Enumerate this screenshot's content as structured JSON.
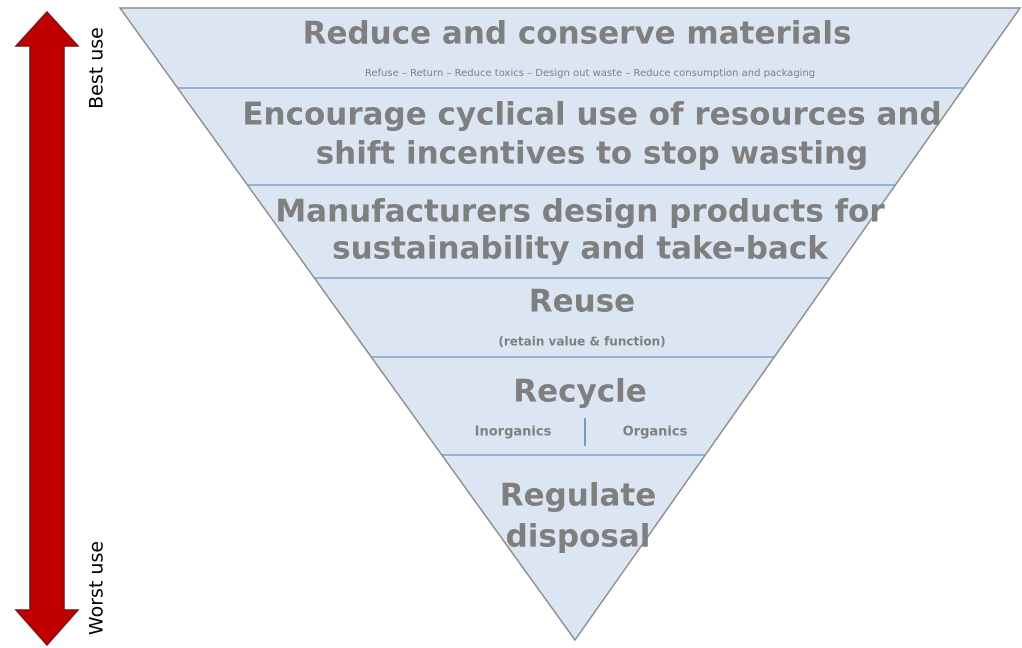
{
  "arrow": {
    "top_label": "Best use",
    "bottom_label": "Worst use"
  },
  "levels": [
    {
      "lines": [
        "Reduce and conserve materials"
      ],
      "subtitle": "Refuse  –  Return  –  Reduce toxics  –  Design out waste  –  Reduce consumption and packaging"
    },
    {
      "lines": [
        "Encourage cyclical use of resources and",
        "shift incentives to stop wasting"
      ]
    },
    {
      "lines": [
        "Manufacturers design products for",
        "sustainability and take-back"
      ]
    },
    {
      "lines": [
        "Reuse"
      ],
      "subtitle": "(retain value & function)"
    },
    {
      "lines": [
        "Recycle"
      ],
      "notes": [
        "Inorganics",
        "Organics"
      ]
    },
    {
      "lines": [
        "Regulate",
        "disposal"
      ]
    }
  ]
}
